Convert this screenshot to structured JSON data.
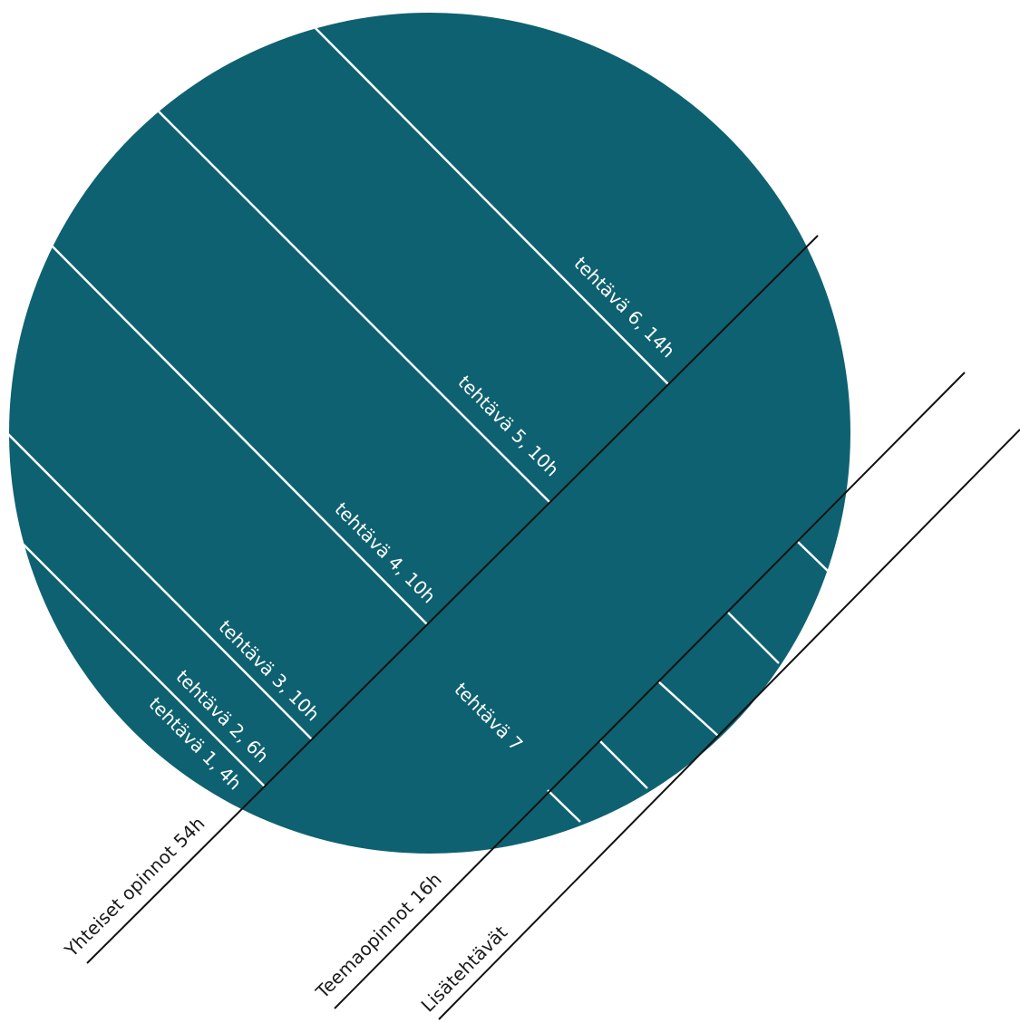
{
  "colors": {
    "circle_fill": "#0e6170",
    "divider": "#ffffff",
    "group_line": "#111111"
  },
  "segments": [
    {
      "label": "tehtävä  1, 4h"
    },
    {
      "label": "tehtävä  2, 6h"
    },
    {
      "label": "tehtävä 3, 10h"
    },
    {
      "label": "tehtävä 4, 10h"
    },
    {
      "label": "tehtävä 5, 10h"
    },
    {
      "label": "tehtävä 6, 14h"
    },
    {
      "label": "tehtävä 7"
    }
  ],
  "groups": [
    {
      "label": "Yhteiset opinnot 54h"
    },
    {
      "label": "Teemaopinnot 16h"
    },
    {
      "label": "Lisätehtävät"
    }
  ]
}
